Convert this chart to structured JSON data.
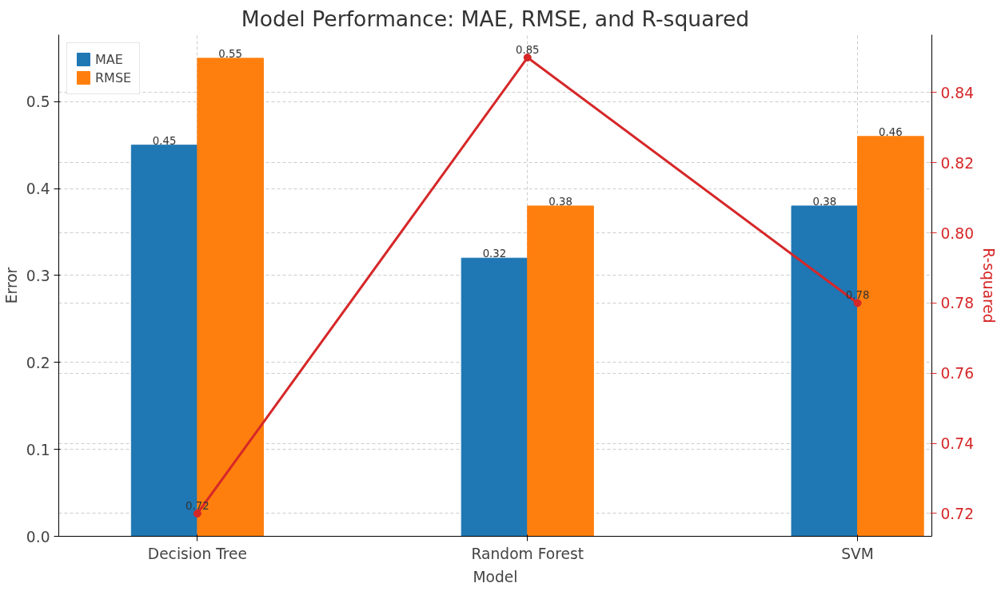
{
  "chart_data": {
    "type": "bar",
    "title": "Model Performance: MAE, RMSE, and R-squared",
    "xlabel": "Model",
    "ylabel": "Error",
    "y2label": "R-squared",
    "categories": [
      "Decision Tree",
      "Random Forest",
      "SVM"
    ],
    "series": [
      {
        "name": "MAE",
        "color": "#1f77b4",
        "values": [
          0.45,
          0.32,
          0.38
        ]
      },
      {
        "name": "RMSE",
        "color": "#ff7f0e",
        "values": [
          0.55,
          0.38,
          0.46
        ]
      },
      {
        "type": "line",
        "axis": "y2",
        "color": "#d62728",
        "values": [
          0.72,
          0.85,
          0.78
        ],
        "marker": "circle"
      }
    ],
    "ylim": [
      0,
      0.577
    ],
    "yticks": [
      {
        "value": 0,
        "label": "0.0"
      },
      0.1,
      0.2,
      0.3,
      0.4,
      0.5
    ],
    "y2lim": [
      0.7135,
      0.8565
    ],
    "y2ticks": [
      0.72,
      0.74,
      0.76,
      0.78,
      {
        "value": 0.8,
        "label": "0.80"
      },
      0.82,
      0.84
    ],
    "grid": true,
    "legend": "top left",
    "data_labels": true
  }
}
